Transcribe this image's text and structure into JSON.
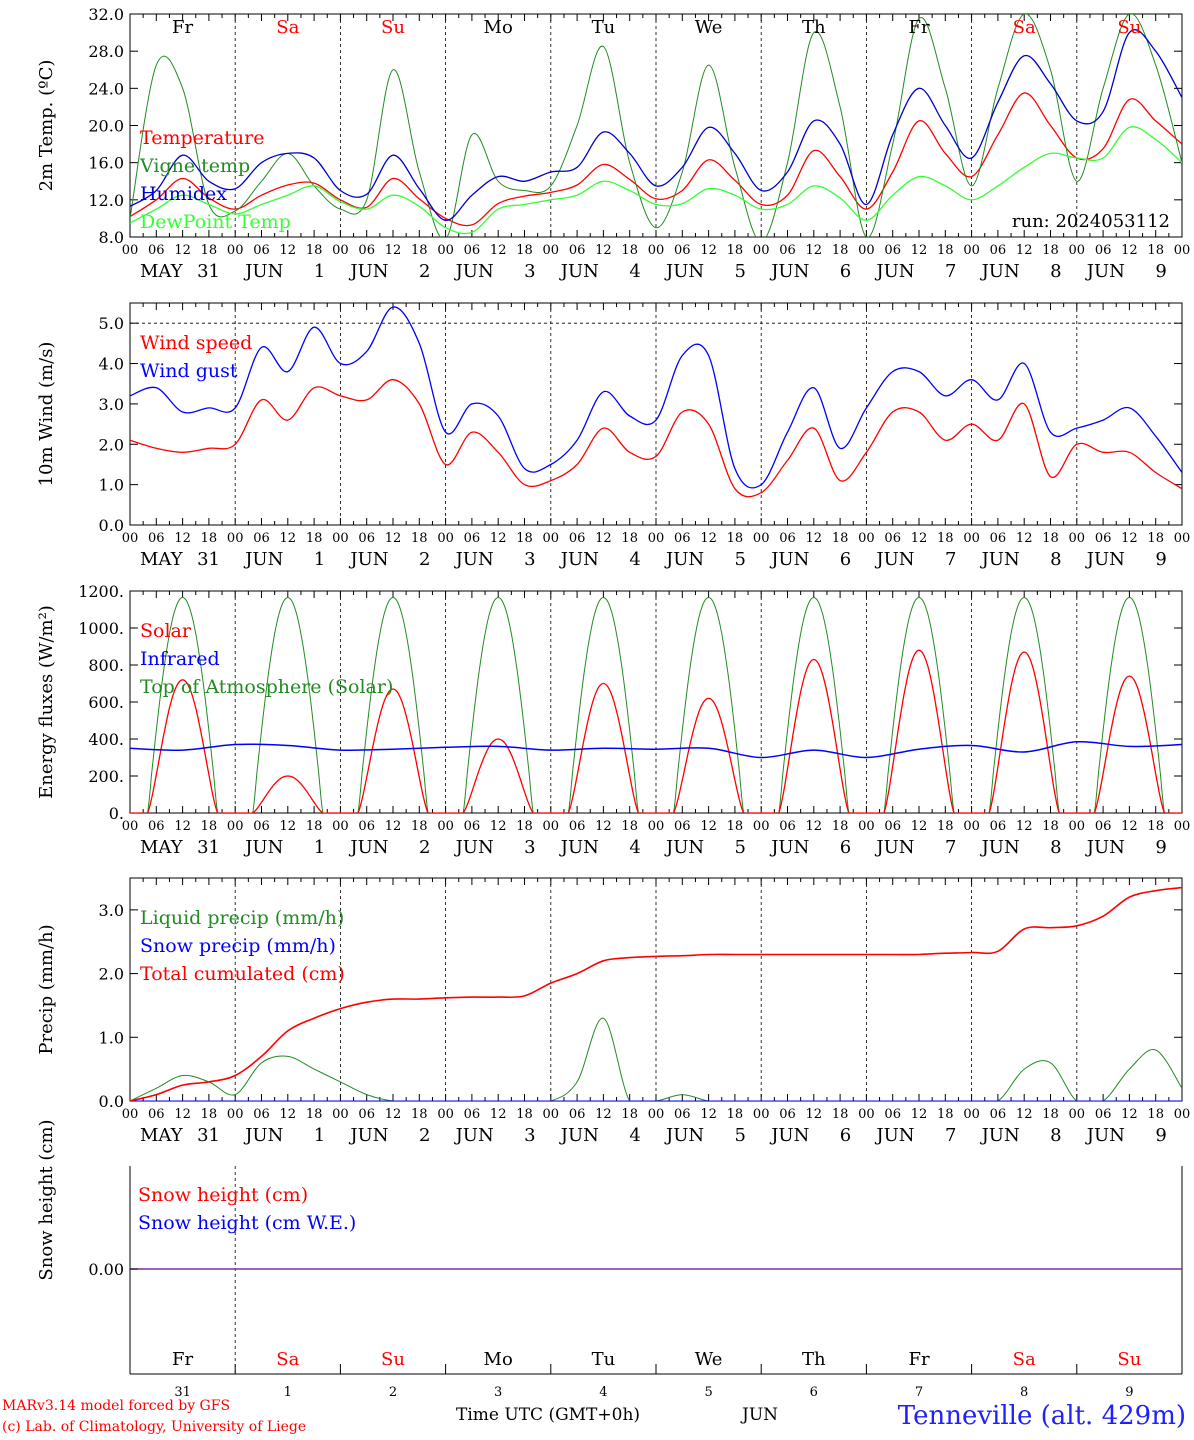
{
  "chart_data": [
    {
      "type": "line",
      "ylabel": "2m Temp. (ºC)",
      "ylim": [
        8,
        32
      ],
      "yticks": [
        "8.0",
        "12.0",
        "16.0",
        "20.0",
        "24.0",
        "28.0",
        "32.0"
      ],
      "annotation": "run: 2024053112",
      "day_labels_top": [
        "Fr",
        "Sa",
        "Su",
        "Mo",
        "Tu",
        "We",
        "Th",
        "Fr",
        "Sa",
        "Su"
      ],
      "x_hours": [
        0,
        6,
        12,
        18,
        24,
        30,
        36,
        42,
        48,
        54,
        60,
        66,
        72,
        78,
        84,
        90,
        96,
        102,
        108,
        114,
        120,
        126,
        132,
        138,
        144,
        150,
        156,
        162,
        168,
        174,
        180,
        186,
        192,
        198,
        204,
        210,
        216,
        222,
        228,
        234,
        240
      ],
      "series": [
        {
          "name": "Temperature",
          "color": "#ff0000",
          "values": [
            10.2,
            12.0,
            14.3,
            12.2,
            11.0,
            12.5,
            13.6,
            13.8,
            12.0,
            11.2,
            14.3,
            12.1,
            10.0,
            9.3,
            11.6,
            12.4,
            12.8,
            13.6,
            15.8,
            14.2,
            12.1,
            13.0,
            16.3,
            14.1,
            11.5,
            12.5,
            17.3,
            14.5,
            11.0,
            15.0,
            20.5,
            17.0,
            14.5,
            19.0,
            23.5,
            20.0,
            16.5,
            17.5,
            22.8,
            20.5,
            18.0
          ]
        },
        {
          "name": "Vigne temp",
          "color": "#228b22",
          "values": [
            10.0,
            26.5,
            24.0,
            11.5,
            10.8,
            14.0,
            17.0,
            13.5,
            11.0,
            12.0,
            26.0,
            15.0,
            7.8,
            19.0,
            14.0,
            13.0,
            13.5,
            20.0,
            28.5,
            16.0,
            9.0,
            15.0,
            26.5,
            15.5,
            7.5,
            16.0,
            30.0,
            22.0,
            8.0,
            18.0,
            31.5,
            24.0,
            13.5,
            24.0,
            32.0,
            26.0,
            14.0,
            24.0,
            32.0,
            26.5,
            16.0
          ]
        },
        {
          "name": "Humidex",
          "color": "#0000cc",
          "values": [
            11.3,
            13.0,
            16.8,
            14.0,
            13.2,
            16.0,
            17.0,
            16.5,
            13.0,
            12.6,
            16.8,
            13.2,
            9.8,
            12.5,
            14.5,
            14.0,
            15.0,
            15.5,
            19.3,
            17.0,
            13.5,
            15.5,
            19.8,
            17.0,
            13.0,
            15.0,
            20.5,
            18.0,
            11.5,
            19.0,
            24.0,
            20.0,
            16.5,
            22.5,
            27.5,
            24.5,
            20.5,
            21.5,
            30.0,
            28.0,
            23.0
          ]
        },
        {
          "name": "DewPoint Temp",
          "color": "#33ff33",
          "values": [
            9.5,
            11.0,
            12.5,
            11.5,
            10.5,
            11.5,
            12.5,
            13.5,
            11.8,
            11.0,
            12.5,
            11.3,
            9.0,
            8.5,
            11.0,
            11.5,
            12.0,
            12.5,
            14.0,
            13.0,
            11.5,
            11.6,
            13.2,
            12.5,
            11.0,
            11.5,
            13.5,
            12.2,
            9.8,
            12.5,
            14.5,
            13.5,
            12.0,
            13.5,
            15.5,
            17.0,
            16.5,
            16.5,
            19.8,
            18.5,
            16.0
          ]
        }
      ]
    },
    {
      "type": "line",
      "ylabel": "10m Wind (m/s)",
      "ylim": [
        0,
        5.5
      ],
      "yticks": [
        "0.0",
        "1.0",
        "2.0",
        "3.0",
        "4.0",
        "5.0"
      ],
      "x_hours": [
        0,
        6,
        12,
        18,
        24,
        30,
        36,
        42,
        48,
        54,
        60,
        66,
        72,
        78,
        84,
        90,
        96,
        102,
        108,
        114,
        120,
        126,
        132,
        138,
        144,
        150,
        156,
        162,
        168,
        174,
        180,
        186,
        192,
        198,
        204,
        210,
        216,
        222,
        228,
        234,
        240
      ],
      "series": [
        {
          "name": "Wind speed",
          "color": "#ff0000",
          "values": [
            2.1,
            1.9,
            1.8,
            1.9,
            2.0,
            3.1,
            2.6,
            3.4,
            3.2,
            3.1,
            3.6,
            3.0,
            1.5,
            2.3,
            1.8,
            1.0,
            1.1,
            1.5,
            2.4,
            1.8,
            1.7,
            2.8,
            2.5,
            0.9,
            0.8,
            1.6,
            2.4,
            1.1,
            1.8,
            2.8,
            2.8,
            2.1,
            2.5,
            2.1,
            3.0,
            1.2,
            2.0,
            1.8,
            1.8,
            1.3,
            0.9
          ]
        },
        {
          "name": "Wind gust",
          "color": "#0000ff",
          "values": [
            3.2,
            3.4,
            2.8,
            2.9,
            2.9,
            4.4,
            3.8,
            4.9,
            4.0,
            4.3,
            5.4,
            4.5,
            2.3,
            3.0,
            2.7,
            1.4,
            1.5,
            2.1,
            3.3,
            2.7,
            2.6,
            4.2,
            4.2,
            1.4,
            1.0,
            2.3,
            3.4,
            1.9,
            2.9,
            3.8,
            3.8,
            3.2,
            3.6,
            3.1,
            4.0,
            2.3,
            2.4,
            2.6,
            2.9,
            2.2,
            1.3
          ]
        }
      ]
    },
    {
      "type": "line",
      "ylabel": "Energy fluxes (W/m²)",
      "ylim": [
        0,
        1200
      ],
      "yticks": [
        "0.",
        "200.",
        "400.",
        "600.",
        "800.",
        "1000.",
        "1200."
      ],
      "solar_peaks": [
        720,
        200,
        670,
        400,
        700,
        620,
        830,
        880,
        870,
        740
      ],
      "toa_peak": 1165,
      "ir_values": [
        350,
        340,
        370,
        365,
        340,
        345,
        355,
        360,
        340,
        350,
        345,
        350,
        300,
        340,
        300,
        345,
        365,
        330,
        385,
        360,
        370
      ],
      "series": [
        {
          "name": "Solar",
          "color": "#ff0000"
        },
        {
          "name": "Infrared",
          "color": "#0000ff"
        },
        {
          "name": "Top of Atmosphere (Solar)",
          "color": "#228b22"
        }
      ]
    },
    {
      "type": "line",
      "ylabel": "Precip (mm/h)",
      "ylim": [
        0,
        3.5
      ],
      "yticks": [
        "0.0",
        "1.0",
        "2.0",
        "3.0"
      ],
      "x_hours": [
        0,
        6,
        12,
        18,
        24,
        30,
        36,
        42,
        48,
        54,
        60,
        66,
        72,
        78,
        84,
        90,
        96,
        102,
        108,
        114,
        120,
        126,
        132,
        138,
        144,
        150,
        156,
        162,
        168,
        174,
        180,
        186,
        192,
        198,
        204,
        210,
        216,
        222,
        228,
        234,
        240
      ],
      "series": [
        {
          "name": "Liquid precip (mm/h)",
          "color": "#228b22",
          "values": [
            0.0,
            0.2,
            0.4,
            0.3,
            0.1,
            0.6,
            0.7,
            0.5,
            0.3,
            0.1,
            0.0,
            0.0,
            0.0,
            0.0,
            0.0,
            0.0,
            0.0,
            0.3,
            1.3,
            0.0,
            0.0,
            0.1,
            0.0,
            0.0,
            0.0,
            0.0,
            0.0,
            0.0,
            0.0,
            0.0,
            0.0,
            0.0,
            0.0,
            0.0,
            0.5,
            0.6,
            0.0,
            0.0,
            0.5,
            0.8,
            0.2
          ]
        },
        {
          "name": "Snow precip (mm/h)",
          "color": "#0000ff",
          "values": [
            0,
            0,
            0,
            0,
            0,
            0,
            0,
            0,
            0,
            0,
            0,
            0,
            0,
            0,
            0,
            0,
            0,
            0,
            0,
            0,
            0,
            0,
            0,
            0,
            0,
            0,
            0,
            0,
            0,
            0,
            0,
            0,
            0,
            0,
            0,
            0,
            0,
            0,
            0,
            0,
            0
          ]
        },
        {
          "name": "Total cumulated (cm)",
          "color": "#ff0000",
          "values": [
            0.0,
            0.1,
            0.25,
            0.3,
            0.4,
            0.7,
            1.1,
            1.3,
            1.45,
            1.55,
            1.6,
            1.6,
            1.62,
            1.63,
            1.63,
            1.65,
            1.85,
            2.0,
            2.2,
            2.25,
            2.27,
            2.28,
            2.3,
            2.3,
            2.3,
            2.3,
            2.3,
            2.3,
            2.3,
            2.3,
            2.3,
            2.32,
            2.33,
            2.35,
            2.7,
            2.72,
            2.75,
            2.9,
            3.2,
            3.3,
            3.35
          ]
        }
      ]
    },
    {
      "type": "line",
      "ylabel": "Snow height (cm)",
      "ytick": "0.00",
      "series": [
        {
          "name": "Snow height (cm)",
          "color": "#ff0000",
          "value": 0.0
        },
        {
          "name": "Snow height (cm W.E.)",
          "color": "#0000ff",
          "value": 0.0
        }
      ]
    }
  ],
  "x_axis": {
    "hour_labels": [
      "00",
      "06",
      "12",
      "18"
    ],
    "dates": [
      {
        "month": "MAY",
        "day": "31"
      },
      {
        "month": "JUN",
        "day": "1"
      },
      {
        "month": "JUN",
        "day": "2"
      },
      {
        "month": "JUN",
        "day": "3"
      },
      {
        "month": "JUN",
        "day": "4"
      },
      {
        "month": "JUN",
        "day": "5"
      },
      {
        "month": "JUN",
        "day": "6"
      },
      {
        "month": "JUN",
        "day": "7"
      },
      {
        "month": "JUN",
        "day": "8"
      },
      {
        "month": "JUN",
        "day": "9"
      }
    ],
    "bottom_day_names": [
      "Fr",
      "Sa",
      "Su",
      "Mo",
      "Tu",
      "We",
      "Th",
      "Fr",
      "Sa",
      "Su"
    ],
    "bottom_day_numbers": [
      "31",
      "1",
      "2",
      "3",
      "4",
      "5",
      "6",
      "7",
      "8",
      "9"
    ],
    "weekend_color": "#ff0000"
  },
  "footer": {
    "model": "MARv3.14 model forced by GFS",
    "copyright": "(c) Lab. of Climatology, University of Liege",
    "time_label": "Time UTC (GMT+0h)",
    "month_label": "JUN",
    "location": "Tenneville (alt. 429m)"
  }
}
